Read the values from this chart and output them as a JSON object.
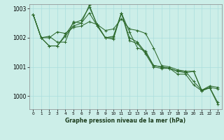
{
  "background_color": "#cceee8",
  "grid_color": "#aadddd",
  "line_color": "#2d6a2d",
  "ylim": [
    999.55,
    1003.15
  ],
  "xlim": [
    -0.5,
    23.5
  ],
  "yticks": [
    1000,
    1001,
    1002,
    1003
  ],
  "ytick_labels": [
    "1000",
    "1001",
    "1002",
    "1003"
  ],
  "xticks": [
    0,
    1,
    2,
    3,
    4,
    5,
    6,
    7,
    8,
    9,
    10,
    11,
    12,
    13,
    14,
    15,
    16,
    17,
    18,
    19,
    20,
    21,
    22,
    23
  ],
  "xlabel": "Graphe pression niveau de la mer (hPa)",
  "series": [
    [
      1002.8,
      1002.0,
      1002.0,
      1002.2,
      1002.15,
      1002.35,
      1002.4,
      1002.55,
      1002.45,
      1002.25,
      1002.3,
      1002.65,
      1002.3,
      1002.25,
      1002.15,
      1001.65,
      1001.05,
      1001.0,
      1000.9,
      1000.85,
      1000.5,
      1000.2,
      1000.3,
      1000.25
    ],
    [
      1002.8,
      1002.0,
      1002.05,
      1001.85,
      1001.85,
      1002.55,
      1002.5,
      1002.85,
      1002.4,
      1002.0,
      1002.05,
      1002.85,
      1002.2,
      1001.65,
      1001.55,
      1001.05,
      1001.0,
      1000.95,
      1000.85,
      1000.8,
      1000.85,
      1000.2,
      1000.35,
      1000.3
    ],
    [
      1002.8,
      1002.0,
      1001.72,
      1001.72,
      1002.1,
      1002.5,
      1002.6,
      1003.05,
      1002.45,
      1002.0,
      1002.0,
      1002.85,
      1002.0,
      1001.85,
      1001.5,
      1001.05,
      1001.0,
      1000.95,
      1000.85,
      1000.85,
      1000.85,
      1000.18,
      1000.3,
      999.78
    ],
    [
      1002.8,
      1002.0,
      1001.72,
      1001.72,
      1002.05,
      1002.4,
      1002.5,
      1003.12,
      1002.4,
      1002.0,
      1001.95,
      1002.85,
      1001.9,
      1001.8,
      1001.45,
      1001.0,
      1000.95,
      1000.95,
      1000.75,
      1000.75,
      1000.38,
      1000.18,
      1000.28,
      999.72
    ]
  ]
}
